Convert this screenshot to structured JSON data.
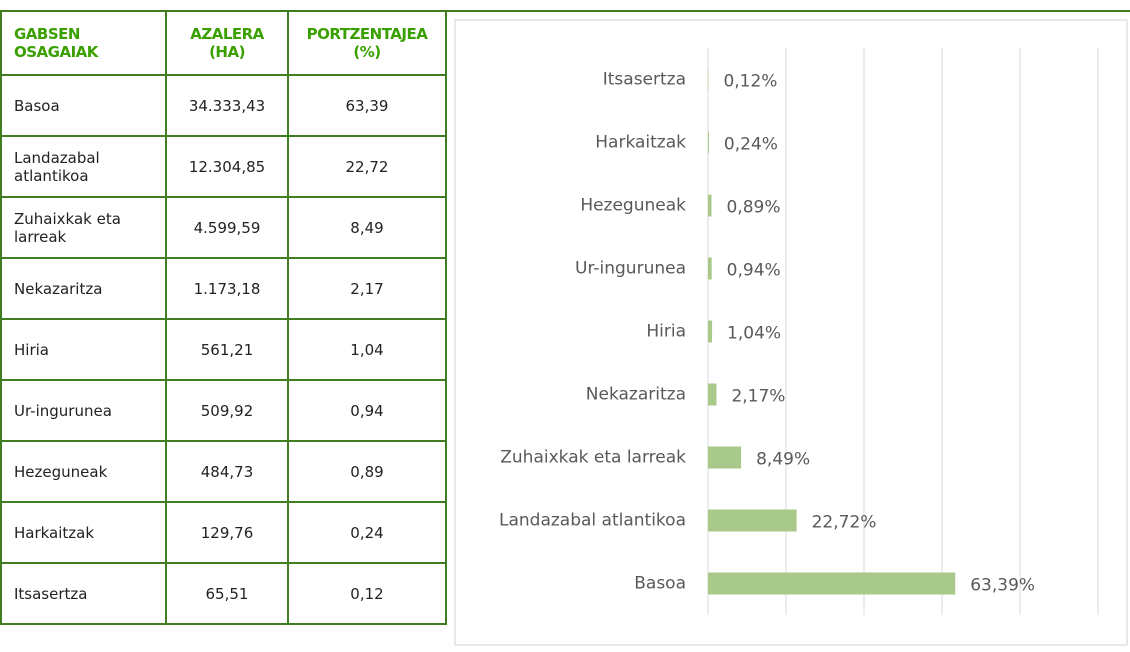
{
  "table": {
    "header": [
      "GABSEN OSAGAIAK",
      "AZALERA (HA)",
      "PORTZENTAJEA (%)"
    ],
    "rows": [
      [
        "Basoa",
        "34.333,43",
        "63,39"
      ],
      [
        "Landazabal atlantikoa",
        "12.304,85",
        "22,72"
      ],
      [
        "Zuhaixkak eta larreak",
        "4.599,59",
        "8,49"
      ],
      [
        "Nekazaritza",
        "1.173,18",
        "2,17"
      ],
      [
        "Hiria",
        "561,21",
        "1,04"
      ],
      [
        "Ur-ingurunea",
        "509,92",
        "0,94"
      ],
      [
        "Hezeguneak",
        "484,73",
        "0,89"
      ],
      [
        "Harkaitzak",
        "129,76",
        "0,24"
      ],
      [
        "Itsasertza",
        "65,51",
        "0,12"
      ]
    ]
  },
  "chart_data": {
    "type": "hbar",
    "categories": [
      "Itsasertza",
      "Harkaitzak",
      "Hezeguneak",
      "Ur-ingurunea",
      "Hiria",
      "Nekazaritza",
      "Zuhaixkak eta larreak",
      "Landazabal atlantikoa",
      "Basoa"
    ],
    "values": [
      0.12,
      0.24,
      0.89,
      0.94,
      1.04,
      2.17,
      8.49,
      22.72,
      63.39
    ],
    "value_labels": [
      "0,12%",
      "0,24%",
      "0,89%",
      "0,94%",
      "1,04%",
      "2,17%",
      "8,49%",
      "22,72%",
      "63,39%"
    ],
    "color": "#a9c98a",
    "xlim": [
      0,
      100
    ],
    "xticks": [
      0,
      20,
      40,
      60,
      80,
      100
    ],
    "grid": true
  }
}
